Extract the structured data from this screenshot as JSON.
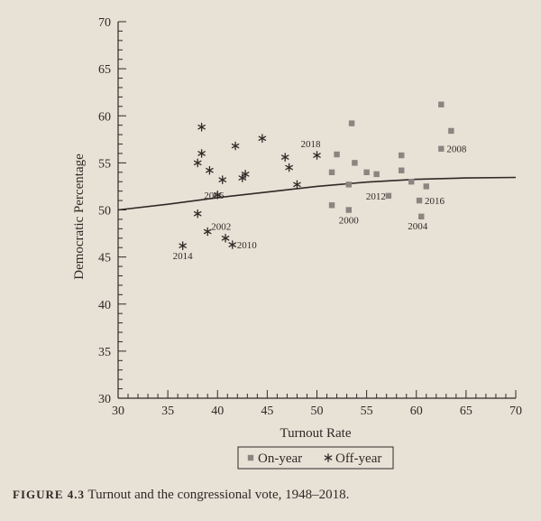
{
  "caption": {
    "label": "FIGURE 4.3",
    "text": "Turnout and the congressional vote, 1948–2018."
  },
  "chart_data": {
    "type": "scatter",
    "title": "",
    "xlabel": "Turnout Rate",
    "ylabel": "Democratic Percentage",
    "xlim": [
      30,
      70
    ],
    "ylim": [
      30,
      70
    ],
    "xticks": [
      30,
      35,
      40,
      45,
      50,
      55,
      60,
      65,
      70
    ],
    "yticks": [
      30,
      35,
      40,
      45,
      50,
      55,
      60,
      65,
      70
    ],
    "legend": {
      "placement": "bottom-center",
      "entries": [
        "On-year",
        "Off-year"
      ]
    },
    "series": [
      {
        "name": "On-year",
        "marker": "square",
        "points": [
          {
            "x": 51.5,
            "y": 50.5,
            "label": ""
          },
          {
            "x": 52.0,
            "y": 55.9,
            "label": ""
          },
          {
            "x": 51.5,
            "y": 54.0,
            "label": ""
          },
          {
            "x": 53.5,
            "y": 59.2,
            "label": ""
          },
          {
            "x": 53.8,
            "y": 55.0,
            "label": ""
          },
          {
            "x": 53.2,
            "y": 52.7,
            "label": ""
          },
          {
            "x": 55.0,
            "y": 54.0,
            "label": ""
          },
          {
            "x": 56.0,
            "y": 53.8,
            "label": ""
          },
          {
            "x": 57.2,
            "y": 51.5,
            "label": "2012"
          },
          {
            "x": 58.5,
            "y": 55.8,
            "label": ""
          },
          {
            "x": 58.5,
            "y": 54.2,
            "label": ""
          },
          {
            "x": 53.2,
            "y": 50.0,
            "label": "2000"
          },
          {
            "x": 59.5,
            "y": 53.0,
            "label": ""
          },
          {
            "x": 60.3,
            "y": 51.0,
            "label": "2016"
          },
          {
            "x": 61.0,
            "y": 52.5,
            "label": ""
          },
          {
            "x": 60.5,
            "y": 49.3,
            "label": "2004"
          },
          {
            "x": 62.5,
            "y": 56.5,
            "label": "2008"
          },
          {
            "x": 63.5,
            "y": 58.4,
            "label": ""
          },
          {
            "x": 62.5,
            "y": 61.2,
            "label": ""
          }
        ]
      },
      {
        "name": "Off-year",
        "marker": "asterisk",
        "points": [
          {
            "x": 36.5,
            "y": 46.2,
            "label": "2014"
          },
          {
            "x": 38.0,
            "y": 55.0,
            "label": ""
          },
          {
            "x": 38.4,
            "y": 58.8,
            "label": ""
          },
          {
            "x": 38.4,
            "y": 56.0,
            "label": ""
          },
          {
            "x": 38.0,
            "y": 49.6,
            "label": ""
          },
          {
            "x": 39.2,
            "y": 54.2,
            "label": ""
          },
          {
            "x": 39.0,
            "y": 47.7,
            "label": "2002"
          },
          {
            "x": 40.0,
            "y": 51.6,
            "label": "2006"
          },
          {
            "x": 40.5,
            "y": 53.2,
            "label": ""
          },
          {
            "x": 40.8,
            "y": 47.0,
            "label": ""
          },
          {
            "x": 41.5,
            "y": 46.3,
            "label": "2010"
          },
          {
            "x": 41.8,
            "y": 56.8,
            "label": ""
          },
          {
            "x": 42.8,
            "y": 53.8,
            "label": ""
          },
          {
            "x": 42.5,
            "y": 53.4,
            "label": ""
          },
          {
            "x": 44.5,
            "y": 57.6,
            "label": ""
          },
          {
            "x": 46.8,
            "y": 55.6,
            "label": ""
          },
          {
            "x": 47.2,
            "y": 54.5,
            "label": ""
          },
          {
            "x": 48.0,
            "y": 52.7,
            "label": ""
          },
          {
            "x": 50.0,
            "y": 55.8,
            "label": "2018"
          }
        ]
      }
    ],
    "trend_line": [
      {
        "x": 30,
        "y": 50.0
      },
      {
        "x": 35,
        "y": 50.6
      },
      {
        "x": 40,
        "y": 51.3
      },
      {
        "x": 45,
        "y": 51.9
      },
      {
        "x": 50,
        "y": 52.5
      },
      {
        "x": 55,
        "y": 52.95
      },
      {
        "x": 60,
        "y": 53.25
      },
      {
        "x": 65,
        "y": 53.4
      },
      {
        "x": 70,
        "y": 53.45
      }
    ]
  }
}
